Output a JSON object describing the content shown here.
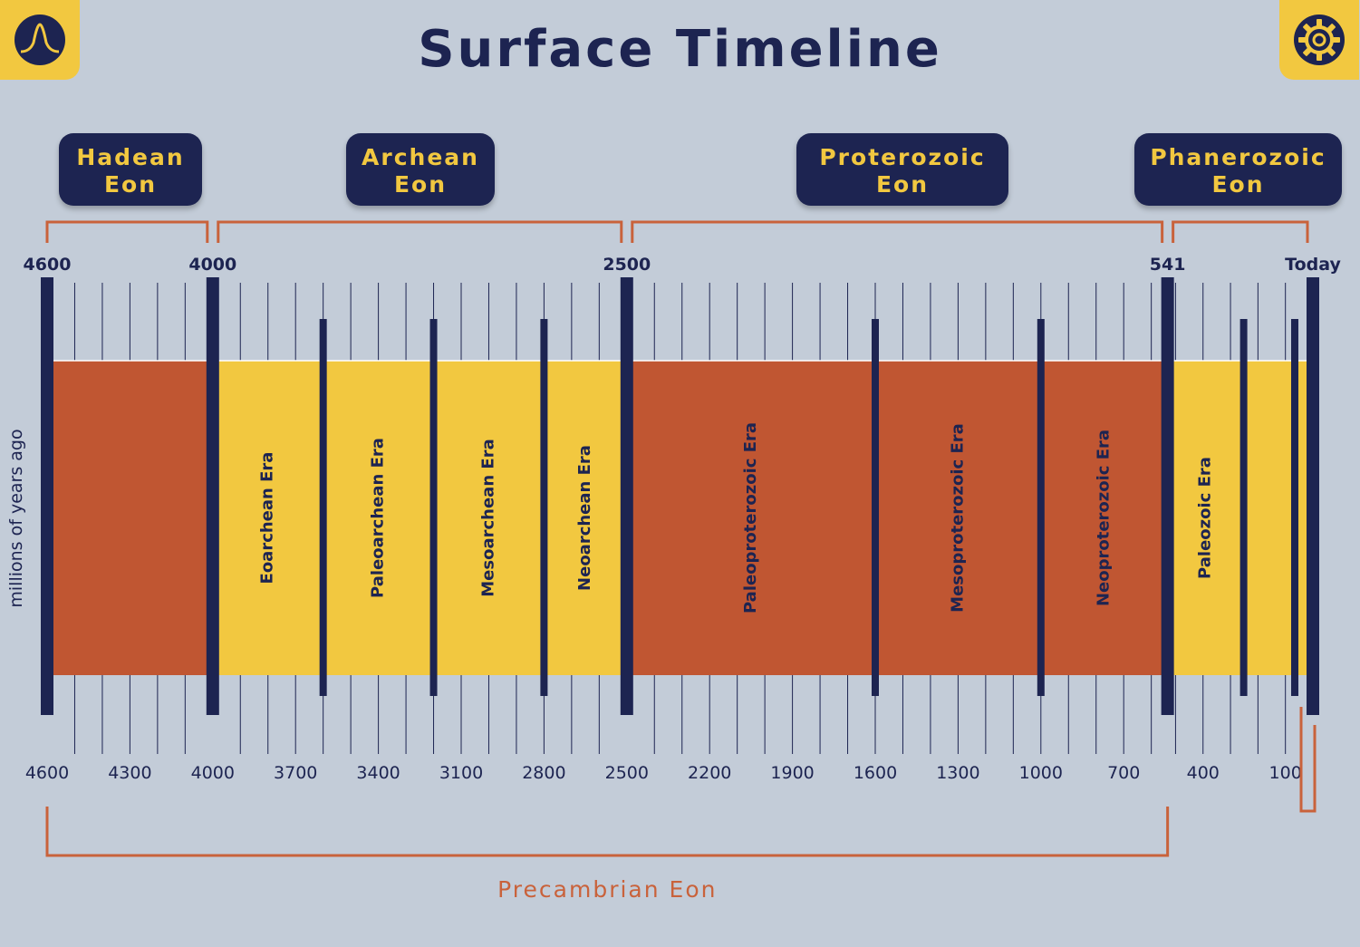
{
  "title": "Surface Timeline",
  "corner_buttons": {
    "left_icon": "waveform-peak-icon",
    "right_icon": "gear-icon"
  },
  "colors": {
    "background": "#c3ccd8",
    "navy": "#1d2451",
    "yellow": "#f2c840",
    "orange": "#c05632",
    "bracket": "#c9623b"
  },
  "eons": [
    {
      "name": "Hadean",
      "suffix": "Eon"
    },
    {
      "name": "Archean",
      "suffix": "Eon"
    },
    {
      "name": "Proterozoic",
      "suffix": "Eon"
    },
    {
      "name": "Phanerozoic",
      "suffix": "Eon"
    }
  ],
  "boundary_labels": [
    "4600",
    "4000",
    "2500",
    "541",
    "Today"
  ],
  "eras": [
    {
      "label": "",
      "start": 4600,
      "end": 4000,
      "color": "orange"
    },
    {
      "label": "Eoarchean Era",
      "start": 4000,
      "end": 3600,
      "color": "yellow"
    },
    {
      "label": "Paleoarchean Era",
      "start": 3600,
      "end": 3200,
      "color": "yellow"
    },
    {
      "label": "Mesoarchean Era",
      "start": 3200,
      "end": 2800,
      "color": "yellow"
    },
    {
      "label": "Neoarchean Era",
      "start": 2800,
      "end": 2500,
      "color": "yellow"
    },
    {
      "label": "Paleoproterozoic Era",
      "start": 2500,
      "end": 1600,
      "color": "orange"
    },
    {
      "label": "Mesoproterozoic Era",
      "start": 1600,
      "end": 1000,
      "color": "orange"
    },
    {
      "label": "Neoproterozoic Era",
      "start": 1000,
      "end": 541,
      "color": "orange"
    },
    {
      "label": "Paleozoic Era",
      "start": 541,
      "end": 252,
      "color": "yellow"
    },
    {
      "label": "",
      "start": 252,
      "end": 66,
      "color": "yellow"
    },
    {
      "label": "",
      "start": 66,
      "end": 0,
      "color": "yellow"
    }
  ],
  "axis": {
    "label": "millions of years ago",
    "ticks": [
      "4600",
      "4300",
      "4000",
      "3700",
      "3400",
      "3100",
      "2800",
      "2500",
      "2200",
      "1900",
      "1600",
      "1300",
      "1000",
      "700",
      "400",
      "100"
    ]
  },
  "precambrian_label": "Precambrian Eon"
}
